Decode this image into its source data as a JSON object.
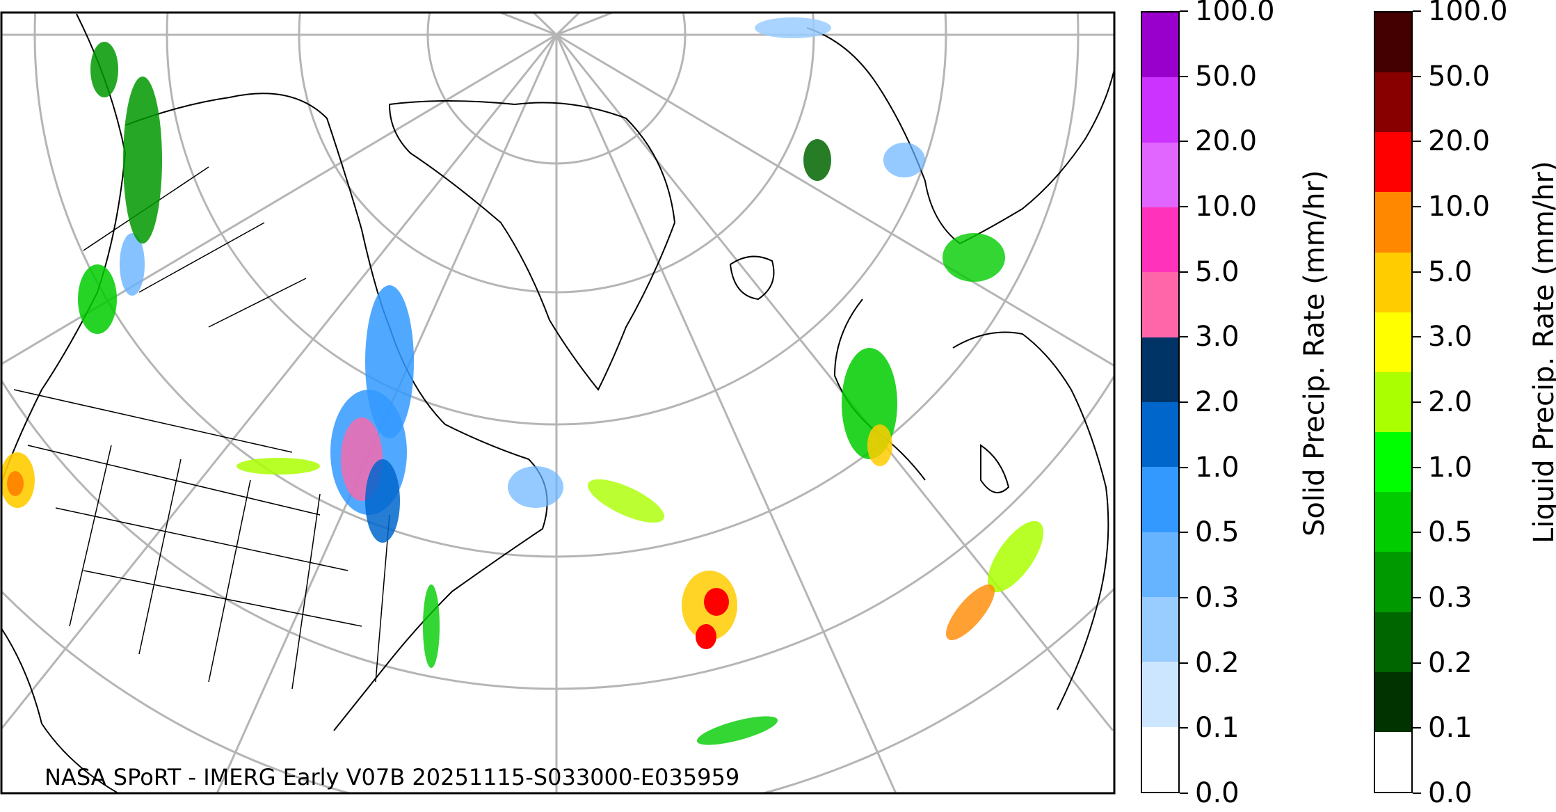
{
  "credit": "NASA SPoRT - IMERG Early V07B 20251115-S033000-E035959",
  "solid_colorbar": {
    "title": "Solid Precip. Rate (mm/hr)",
    "tick_labels": [
      "0.0",
      "0.1",
      "0.2",
      "0.3",
      "0.5",
      "1.0",
      "2.0",
      "3.0",
      "5.0",
      "10.0",
      "20.0",
      "50.0",
      "100.0"
    ],
    "colors": [
      "#ffffff",
      "#cce6ff",
      "#99ccff",
      "#66b3ff",
      "#3399ff",
      "#0066cc",
      "#003366",
      "#ff66aa",
      "#ff33bb",
      "#e066ff",
      "#cc33ff",
      "#9900cc"
    ]
  },
  "liquid_colorbar": {
    "title": "Liquid Precip. Rate (mm/hr)",
    "tick_labels": [
      "0.0",
      "0.1",
      "0.2",
      "0.3",
      "0.5",
      "1.0",
      "2.0",
      "3.0",
      "5.0",
      "10.0",
      "20.0",
      "50.0",
      "100.0"
    ],
    "colors": [
      "#ffffff",
      "#003300",
      "#006600",
      "#009900",
      "#00cc00",
      "#00ff00",
      "#aaff00",
      "#ffff00",
      "#ffcc00",
      "#ff8800",
      "#ff0000",
      "#880000",
      "#440000"
    ]
  }
}
